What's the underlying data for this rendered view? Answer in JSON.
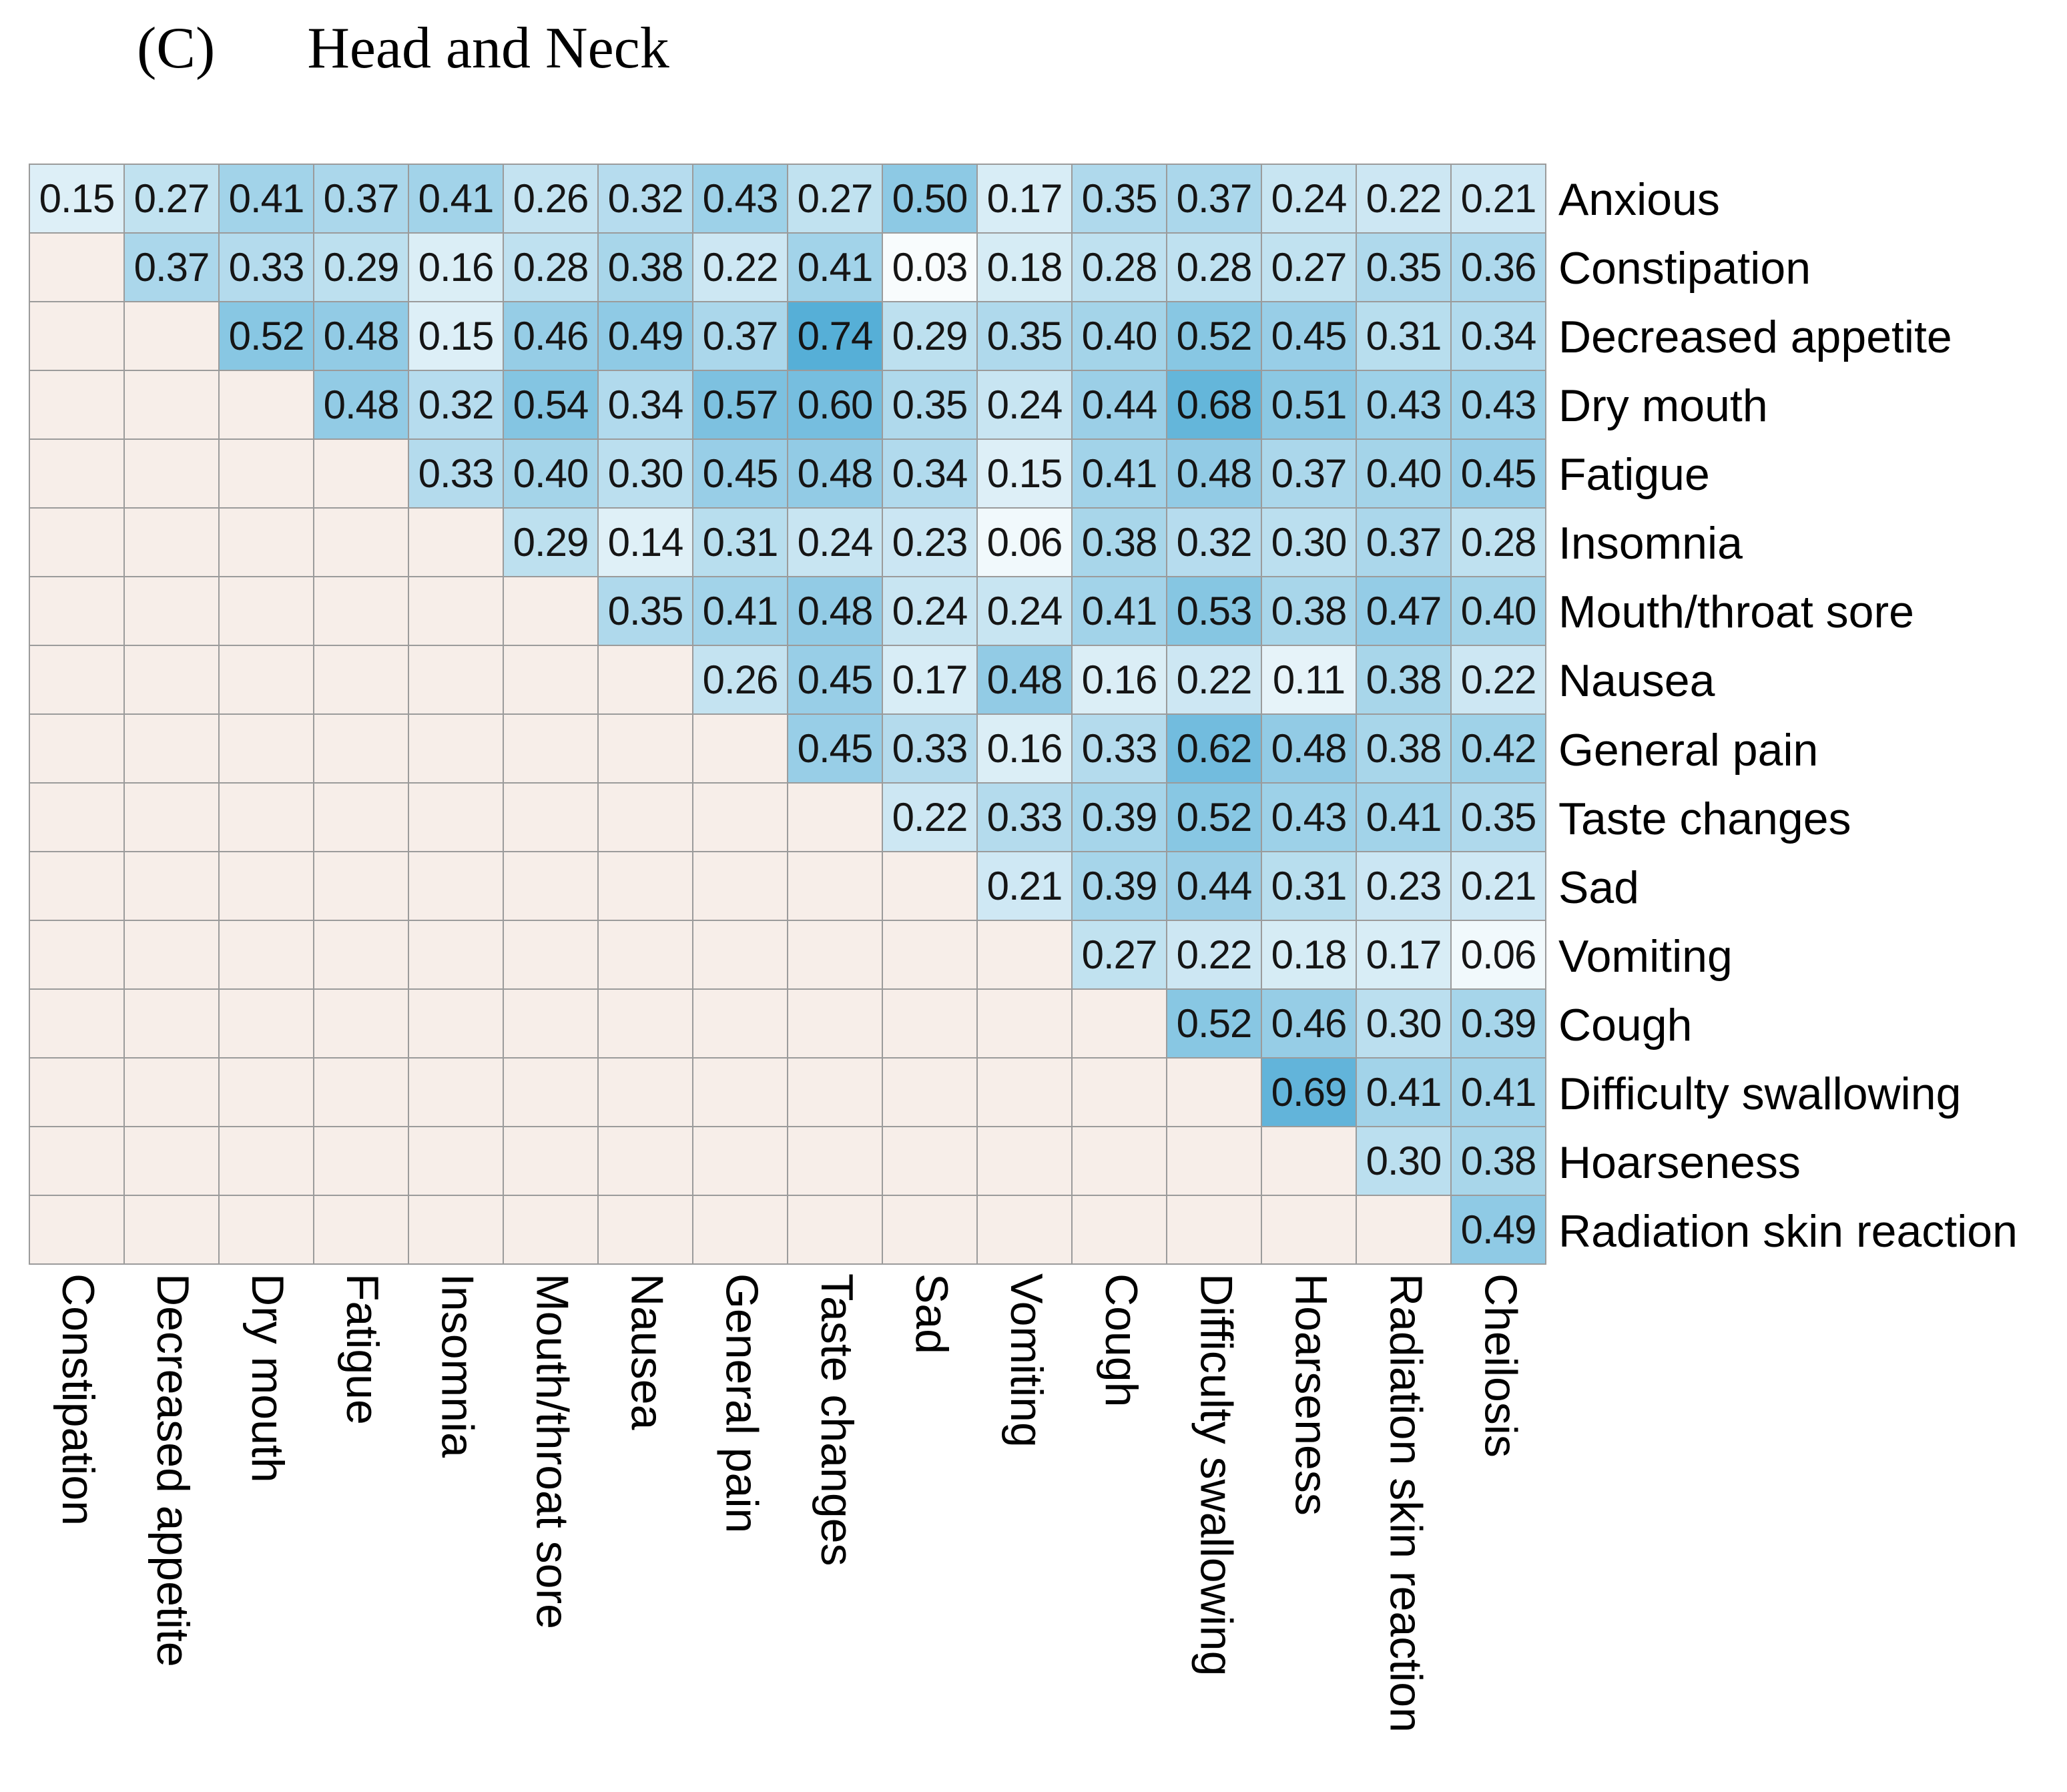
{
  "title": {
    "panel_label": "(C)",
    "text": "Head and Neck"
  },
  "chart_data": {
    "type": "heatmap",
    "panel_label": "(C)",
    "title": "Head and Neck",
    "triangle": "upper",
    "legend": "none",
    "grid": true,
    "scale_domain": [
      0,
      1
    ],
    "value_format": "0.00",
    "columns": [
      "Constipation",
      "Decreased appetite",
      "Dry mouth",
      "Fatigue",
      "Insomnia",
      "Mouth/throat sore",
      "Nausea",
      "General pain",
      "Taste changes",
      "Sad",
      "Vomiting",
      "Cough",
      "Difficulty swallowing",
      "Hoarseness",
      "Radiation skin reaction",
      "Cheilosis"
    ],
    "rows": [
      "Anxious",
      "Constipation",
      "Decreased appetite",
      "Dry mouth",
      "Fatigue",
      "Insomnia",
      "Mouth/throat sore",
      "Nausea",
      "General pain",
      "Taste changes",
      "Sad",
      "Vomiting",
      "Cough",
      "Difficulty swallowing",
      "Hoarseness",
      "Radiation skin reaction"
    ],
    "matrix": [
      [
        0.15,
        0.27,
        0.41,
        0.37,
        0.41,
        0.26,
        0.32,
        0.43,
        0.27,
        0.5,
        0.17,
        0.35,
        0.37,
        0.24,
        0.22,
        0.21
      ],
      [
        null,
        0.37,
        0.33,
        0.29,
        0.16,
        0.28,
        0.38,
        0.22,
        0.41,
        0.03,
        0.18,
        0.28,
        0.28,
        0.27,
        0.35,
        0.36
      ],
      [
        null,
        null,
        0.52,
        0.48,
        0.15,
        0.46,
        0.49,
        0.37,
        0.74,
        0.29,
        0.35,
        0.4,
        0.52,
        0.45,
        0.31,
        0.34
      ],
      [
        null,
        null,
        null,
        0.48,
        0.32,
        0.54,
        0.34,
        0.57,
        0.6,
        0.35,
        0.24,
        0.44,
        0.68,
        0.51,
        0.43,
        0.43
      ],
      [
        null,
        null,
        null,
        null,
        0.33,
        0.4,
        0.3,
        0.45,
        0.48,
        0.34,
        0.15,
        0.41,
        0.48,
        0.37,
        0.4,
        0.45
      ],
      [
        null,
        null,
        null,
        null,
        null,
        0.29,
        0.14,
        0.31,
        0.24,
        0.23,
        0.06,
        0.38,
        0.32,
        0.3,
        0.37,
        0.28
      ],
      [
        null,
        null,
        null,
        null,
        null,
        null,
        0.35,
        0.41,
        0.48,
        0.24,
        0.24,
        0.41,
        0.53,
        0.38,
        0.47,
        0.4
      ],
      [
        null,
        null,
        null,
        null,
        null,
        null,
        null,
        0.26,
        0.45,
        0.17,
        0.48,
        0.16,
        0.22,
        0.11,
        0.38,
        0.22
      ],
      [
        null,
        null,
        null,
        null,
        null,
        null,
        null,
        null,
        0.45,
        0.33,
        0.16,
        0.33,
        0.62,
        0.48,
        0.38,
        0.42
      ],
      [
        null,
        null,
        null,
        null,
        null,
        null,
        null,
        null,
        null,
        0.22,
        0.33,
        0.39,
        0.52,
        0.43,
        0.41,
        0.35
      ],
      [
        null,
        null,
        null,
        null,
        null,
        null,
        null,
        null,
        null,
        null,
        0.21,
        0.39,
        0.44,
        0.31,
        0.23,
        0.21
      ],
      [
        null,
        null,
        null,
        null,
        null,
        null,
        null,
        null,
        null,
        null,
        null,
        0.27,
        0.22,
        0.18,
        0.17,
        0.06
      ],
      [
        null,
        null,
        null,
        null,
        null,
        null,
        null,
        null,
        null,
        null,
        null,
        null,
        0.52,
        0.46,
        0.3,
        0.39
      ],
      [
        null,
        null,
        null,
        null,
        null,
        null,
        null,
        null,
        null,
        null,
        null,
        null,
        null,
        0.69,
        0.41,
        0.41
      ],
      [
        null,
        null,
        null,
        null,
        null,
        null,
        null,
        null,
        null,
        null,
        null,
        null,
        null,
        null,
        0.3,
        0.38
      ],
      [
        null,
        null,
        null,
        null,
        null,
        null,
        null,
        null,
        null,
        null,
        null,
        null,
        null,
        null,
        null,
        0.49
      ]
    ],
    "colors": {
      "background": "#ffffff",
      "scale_min_color": "#ffffff",
      "scale_max_color": "#1b93c9",
      "empty_cell": "#f7eee9",
      "grid_line": "#9b9b9b",
      "value_text": "#151515",
      "label_text": "#000000"
    }
  }
}
